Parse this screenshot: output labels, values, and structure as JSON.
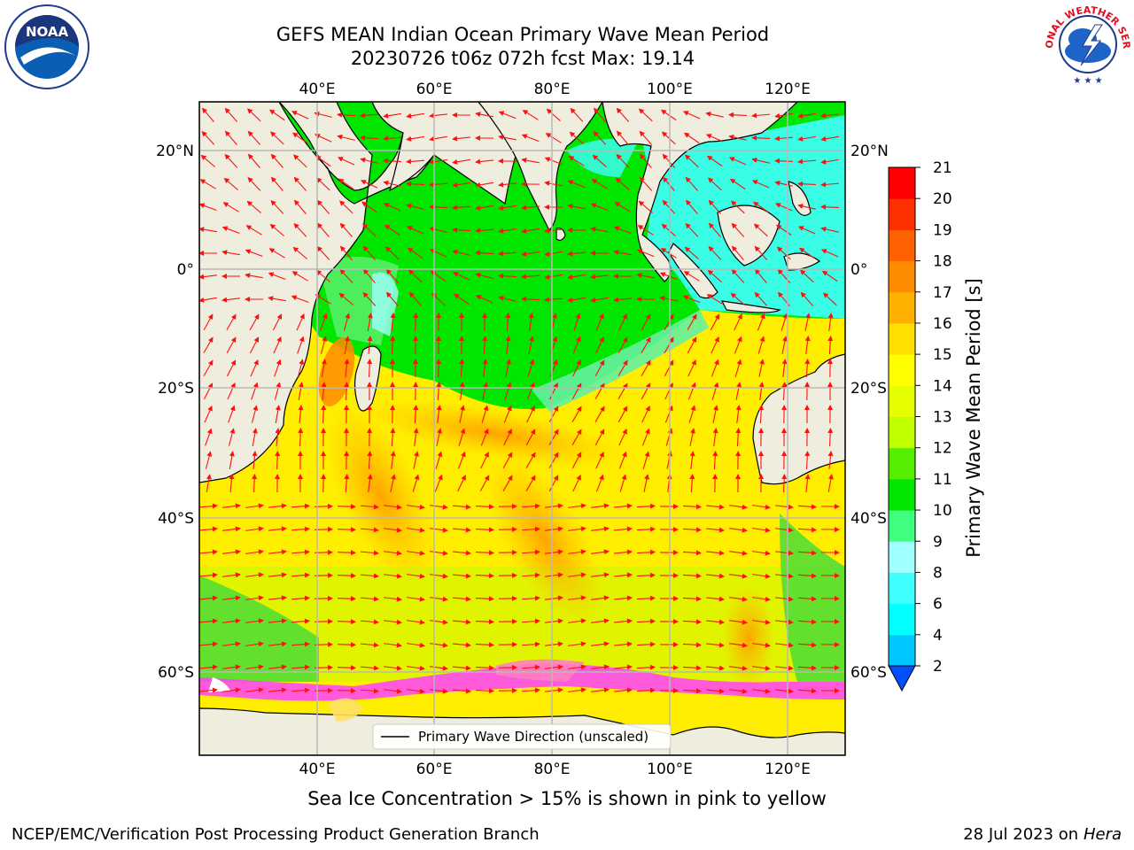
{
  "title_line1": "GEFS MEAN Indian Ocean Primary Wave Mean Period",
  "title_line2": "20230726 t06z 072h fcst   Max: 19.14",
  "colorbar_label": "Primary Wave Mean Period [s]",
  "colorbar_ticks": [
    "2",
    "4",
    "6",
    "8",
    "9",
    "10",
    "11",
    "12",
    "13",
    "14",
    "15",
    "16",
    "17",
    "18",
    "19",
    "20",
    "21"
  ],
  "colorbar_colors": [
    "#0050ff",
    "#00c8ff",
    "#00ffff",
    "#40ffff",
    "#a0ffff",
    "#40ff80",
    "#00e600",
    "#55ee00",
    "#c0ff00",
    "#e6ff00",
    "#ffff00",
    "#ffe000",
    "#ffb000",
    "#ff8c00",
    "#ff6000",
    "#ff3000",
    "#ff0000"
  ],
  "lon_labels": [
    "40°E",
    "60°E",
    "80°E",
    "100°E",
    "120°E"
  ],
  "lat_labels": [
    "20°N",
    "0°",
    "20°S",
    "40°S",
    "60°S"
  ],
  "legend_label": "Primary Wave Direction (unscaled)",
  "ice_note": "Sea Ice Concentration > 15% is shown in pink to yellow",
  "footer_left": "NCEP/EMC/Verification Post Processing Product Generation Branch",
  "footer_date": "28 Jul 2023 on ",
  "footer_machine": "Hera",
  "noaa_logo_text": "NOAA",
  "nws_logo_text": "NATIONAL WEATHER SERVICE"
}
